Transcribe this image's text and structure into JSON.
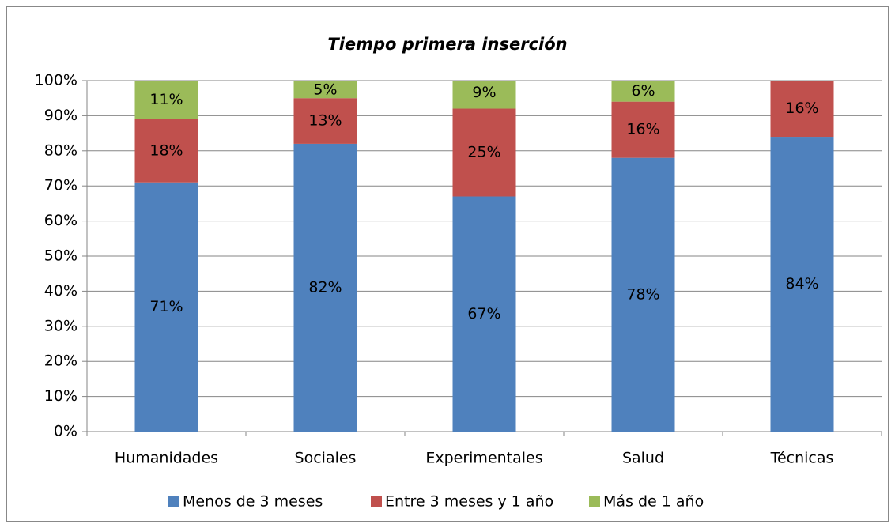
{
  "chart_data": {
    "type": "stacked_bar",
    "title": "Tiempo primera inserción",
    "categories": [
      "Humanidades",
      "Sociales",
      "Experimentales",
      "Salud",
      "Técnicas"
    ],
    "series": [
      {
        "name": "Menos de 3 meses",
        "color": "#4f81bd",
        "values": [
          71,
          82,
          67,
          78,
          84
        ],
        "value_labels": [
          "71%",
          "82%",
          "67%",
          "78%",
          "84%"
        ]
      },
      {
        "name": "Entre 3 meses y 1 año",
        "color": "#c0504d",
        "values": [
          18,
          13,
          25,
          16,
          16
        ],
        "value_labels": [
          "18%",
          "13%",
          "25%",
          "16%",
          "16%"
        ]
      },
      {
        "name": "Más de 1 año",
        "color": "#9bbb59",
        "values": [
          11,
          5,
          9,
          6,
          0
        ],
        "value_labels": [
          "11%",
          "5%",
          "9%",
          "6%",
          null
        ]
      }
    ],
    "ylim": [
      0,
      100
    ],
    "yticks": [
      {
        "value": 0,
        "label": "0%"
      },
      {
        "value": 10,
        "label": "10%"
      },
      {
        "value": 20,
        "label": "20%"
      },
      {
        "value": 30,
        "label": "30%"
      },
      {
        "value": 40,
        "label": "40%"
      },
      {
        "value": 50,
        "label": "50%"
      },
      {
        "value": 60,
        "label": "60%"
      },
      {
        "value": 70,
        "label": "70%"
      },
      {
        "value": 80,
        "label": "80%"
      },
      {
        "value": 90,
        "label": "90%"
      },
      {
        "value": 100,
        "label": "100%"
      }
    ],
    "grid": true,
    "legend": "bottom"
  }
}
